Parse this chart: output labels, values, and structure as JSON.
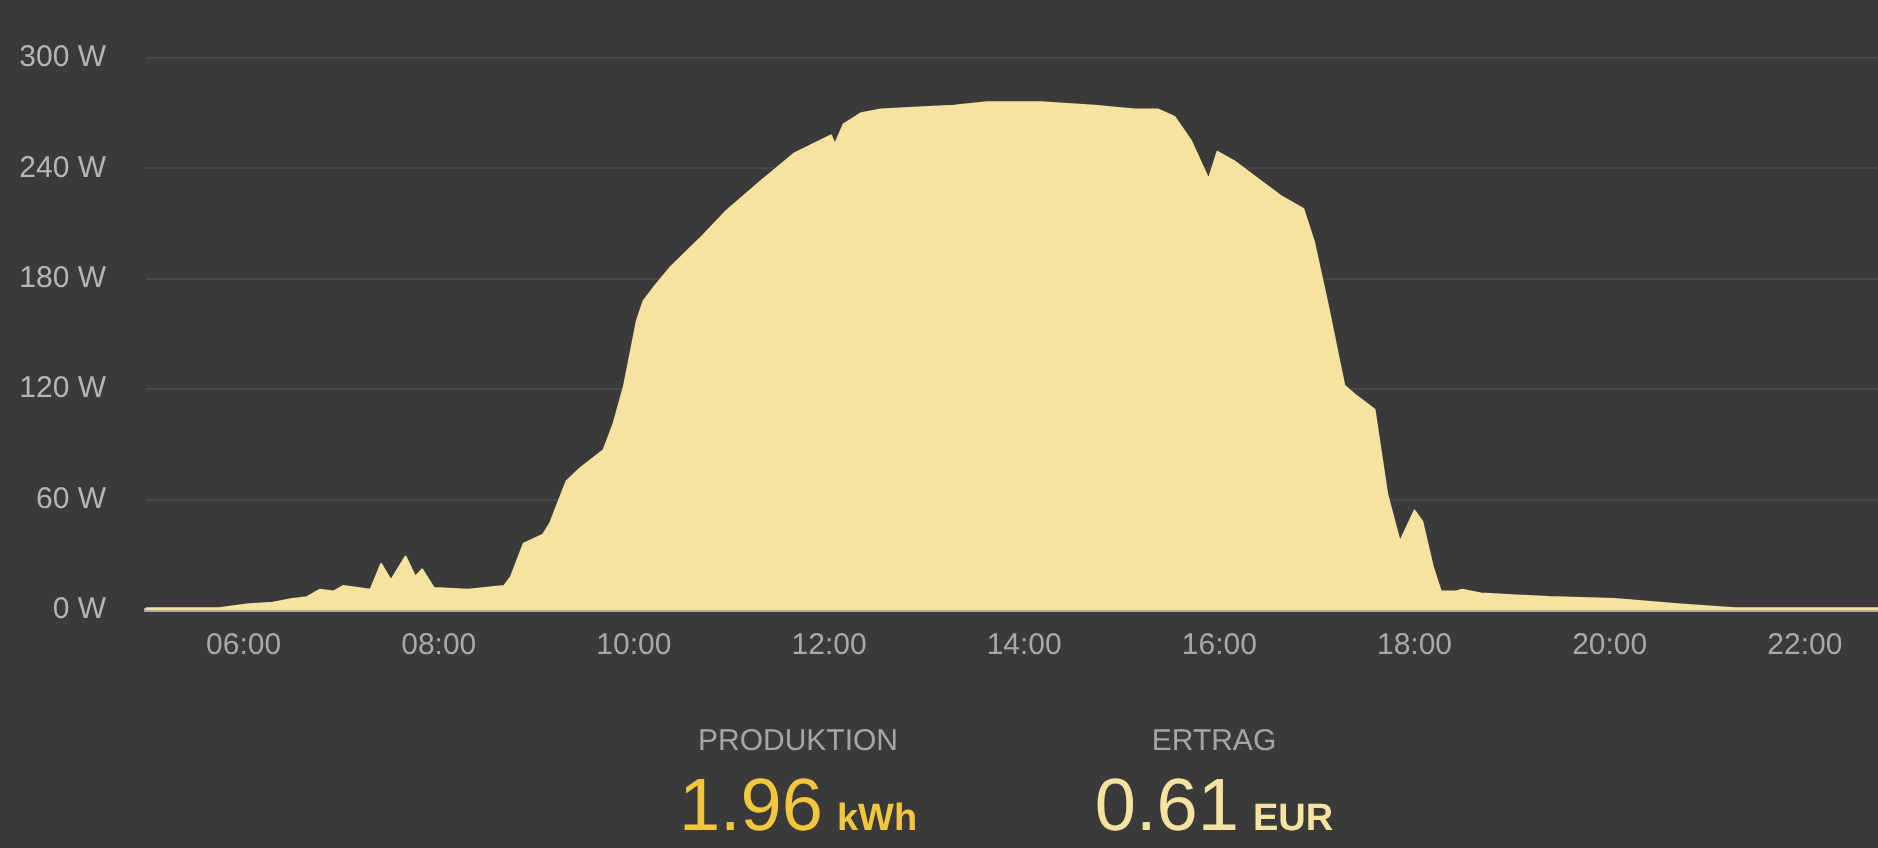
{
  "chart_data": {
    "type": "area",
    "color": "#f6e3a0",
    "x": [
      5.0,
      5.75,
      6.03,
      6.3,
      6.5,
      6.65,
      6.78,
      6.92,
      7.02,
      7.3,
      7.41,
      7.51,
      7.66,
      7.76,
      7.83,
      7.95,
      8.3,
      8.67,
      8.74,
      8.87,
      9.07,
      9.14,
      9.31,
      9.45,
      9.69,
      9.79,
      9.9,
      10.03,
      10.1,
      10.2,
      10.37,
      10.68,
      10.95,
      11.3,
      11.64,
      12.02,
      12.06,
      12.15,
      12.33,
      12.53,
      12.87,
      13.28,
      13.62,
      14.17,
      14.72,
      15.13,
      15.37,
      15.54,
      15.71,
      15.89,
      15.98,
      16.15,
      16.63,
      16.86,
      16.97,
      17.11,
      17.28,
      17.39,
      17.59,
      17.72,
      17.85,
      18.0,
      18.08,
      18.19,
      18.27,
      18.42,
      18.49,
      18.68,
      19.37,
      20.05,
      20.73,
      21.28,
      22.75
    ],
    "values": [
      1,
      1,
      3,
      4,
      6,
      7,
      11,
      10,
      13,
      11,
      25,
      16,
      29,
      18,
      22,
      12,
      11,
      13,
      18,
      36,
      41,
      47,
      70,
      77,
      87,
      101,
      122,
      157,
      168,
      175,
      186,
      202,
      217,
      233,
      248,
      258,
      253,
      264,
      270,
      272,
      273,
      274,
      276,
      276,
      274,
      272,
      272,
      268,
      255,
      234,
      249,
      244,
      225,
      218,
      200,
      166,
      122,
      117,
      109,
      63,
      37,
      54,
      48,
      23,
      10,
      10,
      11,
      9,
      7,
      6,
      3,
      1,
      1
    ],
    "xlim": [
      5,
      22.75
    ],
    "xticks": [
      {
        "value": 6,
        "label": "06:00"
      },
      {
        "value": 8,
        "label": "08:00"
      },
      {
        "value": 10,
        "label": "10:00"
      },
      {
        "value": 12,
        "label": "12:00"
      },
      {
        "value": 14,
        "label": "14:00"
      },
      {
        "value": 16,
        "label": "16:00"
      },
      {
        "value": 18,
        "label": "18:00"
      },
      {
        "value": 20,
        "label": "20:00"
      },
      {
        "value": 22,
        "label": "22:00"
      }
    ],
    "ylim": [
      0,
      300
    ],
    "yticks": [
      {
        "value": 0,
        "label": "0 W"
      },
      {
        "value": 60,
        "label": "60 W"
      },
      {
        "value": 120,
        "label": "120 W"
      },
      {
        "value": 180,
        "label": "180 W"
      },
      {
        "value": 240,
        "label": "240 W"
      },
      {
        "value": 300,
        "label": "300 W"
      }
    ],
    "grid": "y",
    "annotations": [
      "PRODUKTION",
      "1.96 kWh",
      "ERTRAG",
      "0.61 EUR"
    ]
  }
}
